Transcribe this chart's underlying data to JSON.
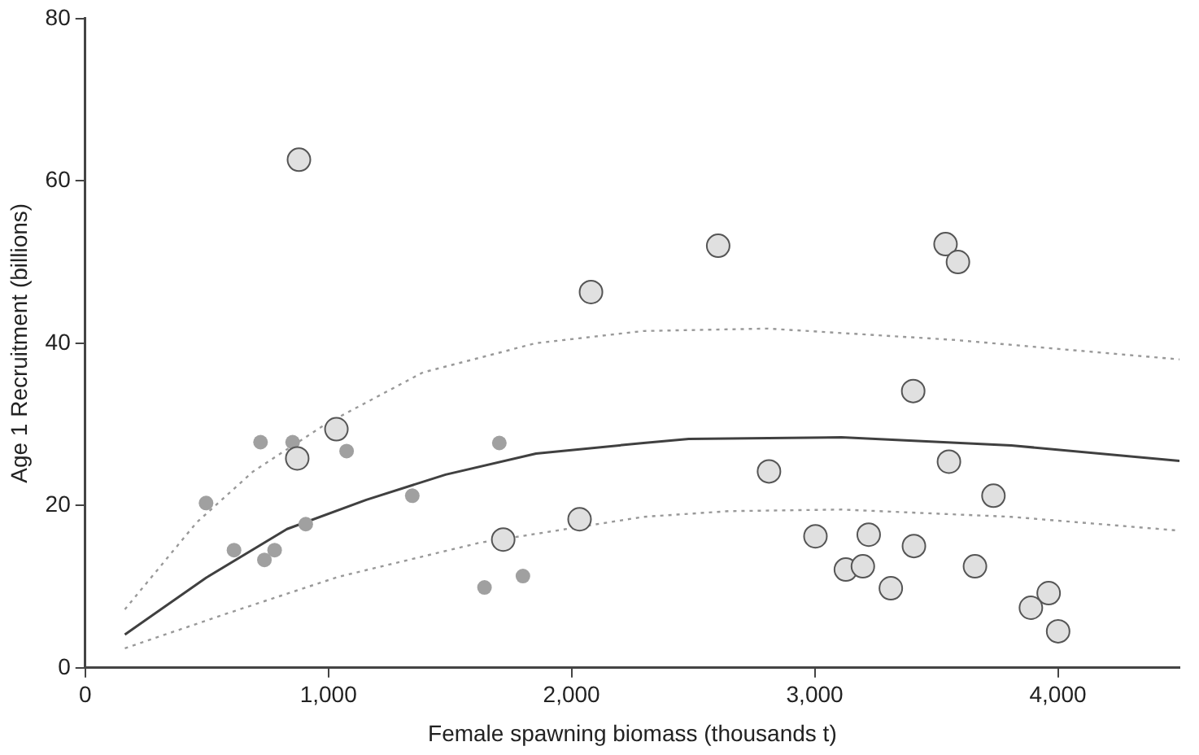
{
  "chart_data": {
    "type": "scatter",
    "xlabel": "Female spawning biomass (thousands t)",
    "ylabel": "Age 1 Recruitment (billions)",
    "xlim": [
      0,
      4500
    ],
    "xticks": [
      {
        "value": 0,
        "label": "0"
      },
      {
        "value": 1000,
        "label": "1,000"
      },
      {
        "value": 2000,
        "label": "2,000"
      },
      {
        "value": 3000,
        "label": "3,000"
      },
      {
        "value": 4000,
        "label": "4,000"
      }
    ],
    "ylim": [
      0,
      80
    ],
    "yticks": [
      0,
      20,
      40,
      60,
      80
    ],
    "grid": false,
    "legend": false,
    "series": [
      {
        "marker": "circle",
        "color": "#e0e0e0",
        "x": [
          879,
          2080,
          1033,
          872,
          1719,
          2033,
          2603,
          3538,
          3589,
          3405,
          2812,
          3552,
          3735,
          3003,
          3222,
          3408,
          3128,
          3198,
          3313,
          3659,
          3962,
          3889,
          4001
        ],
        "values": [
          62.6,
          46.3,
          29.4,
          25.8,
          15.8,
          18.3,
          52.0,
          52.2,
          50.0,
          34.1,
          24.2,
          25.4,
          21.2,
          16.2,
          16.4,
          15.0,
          12.1,
          12.5,
          9.8,
          12.5,
          9.2,
          7.4,
          4.5
        ]
      },
      {
        "marker": "circle",
        "color": "#a0a0a0",
        "x": [
          497,
          612,
          721,
          737,
          779,
          853,
          907,
          1075,
          1345,
          1642,
          1703,
          1800
        ],
        "values": [
          20.3,
          14.5,
          27.8,
          13.3,
          14.5,
          27.8,
          17.7,
          26.7,
          21.2,
          9.9,
          27.7,
          11.3
        ]
      },
      {
        "type": "line",
        "marker": "none",
        "color": "#404040",
        "line_style": "solid",
        "x": [
          163,
          498,
          830,
          1156,
          1482,
          1854,
          2296,
          2482,
          3110,
          3808,
          4500
        ],
        "values": [
          4.1,
          11.1,
          17.1,
          20.7,
          23.8,
          26.4,
          27.7,
          28.2,
          28.4,
          27.4,
          25.5
        ]
      },
      {
        "type": "line",
        "marker": "none",
        "color": "#999999",
        "line_style": "dotted",
        "x": [
          163,
          458,
          691,
          993,
          1389,
          1854,
          2296,
          2808,
          3575,
          4500
        ],
        "values": [
          7.2,
          17.9,
          24.2,
          30.1,
          36.4,
          40.0,
          41.5,
          41.8,
          40.4,
          38.0
        ]
      },
      {
        "type": "line",
        "marker": "none",
        "color": "#999999",
        "line_style": "dotted",
        "x": [
          163,
          574,
          1040,
          1621,
          2296,
          2645,
          3110,
          3808,
          4500
        ],
        "values": [
          2.4,
          6.6,
          11.2,
          15.4,
          18.6,
          19.3,
          19.5,
          18.6,
          16.9
        ]
      }
    ]
  }
}
